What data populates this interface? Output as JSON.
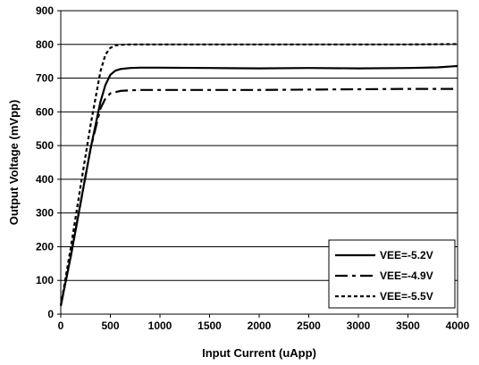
{
  "chart_data": {
    "type": "line",
    "title": "",
    "xlabel": "Input Current (uApp)",
    "ylabel": "Output Voltage (mVpp)",
    "xlim": [
      0,
      4000
    ],
    "ylim": [
      0,
      900
    ],
    "x_ticks": [
      0,
      500,
      1000,
      1500,
      2000,
      2500,
      3000,
      3500,
      4000
    ],
    "y_ticks": [
      0,
      100,
      200,
      300,
      400,
      500,
      600,
      700,
      800,
      900
    ],
    "grid": "horizontal",
    "legend_position": "bottom-right",
    "series": [
      {
        "name": "VEE=-5.2V",
        "style": "solid",
        "color": "#000000",
        "x": [
          0,
          100,
          200,
          300,
          400,
          450,
          500,
          550,
          600,
          700,
          800,
          1000,
          1500,
          2000,
          2500,
          3000,
          3500,
          3800,
          4000
        ],
        "y": [
          25,
          170,
          330,
          490,
          630,
          680,
          710,
          722,
          727,
          730,
          731,
          731,
          730,
          729,
          730,
          729,
          730,
          732,
          736
        ]
      },
      {
        "name": "VEE=-4.9V",
        "style": "dashdot",
        "color": "#000000",
        "x": [
          0,
          100,
          200,
          300,
          400,
          450,
          500,
          600,
          700,
          800,
          1000,
          1500,
          2000,
          2500,
          3000,
          3500,
          4000
        ],
        "y": [
          25,
          170,
          330,
          490,
          610,
          640,
          655,
          662,
          664,
          665,
          665,
          665,
          665,
          666,
          667,
          668,
          668
        ]
      },
      {
        "name": "VEE=-5.5V",
        "style": "dotted",
        "color": "#000000",
        "x": [
          0,
          100,
          200,
          300,
          400,
          450,
          500,
          550,
          600,
          700,
          1000,
          1500,
          2000,
          2500,
          3000,
          3500,
          4000
        ],
        "y": [
          25,
          195,
          380,
          560,
          720,
          770,
          790,
          797,
          799,
          800,
          800,
          800,
          800,
          800,
          800,
          800,
          801
        ]
      }
    ]
  }
}
